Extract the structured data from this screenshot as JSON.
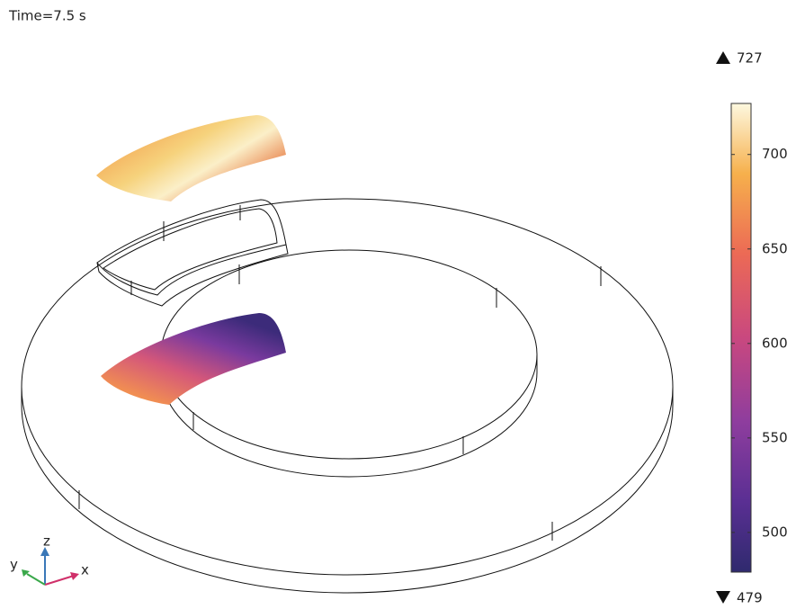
{
  "chart_data": {
    "type": "surface",
    "title": "Time=7.5 s",
    "clim": [
      479,
      727
    ],
    "cticks": [
      500,
      550,
      600,
      650,
      700
    ],
    "axis_labels": {
      "x": "x",
      "y": "y",
      "z": "z"
    }
  }
}
